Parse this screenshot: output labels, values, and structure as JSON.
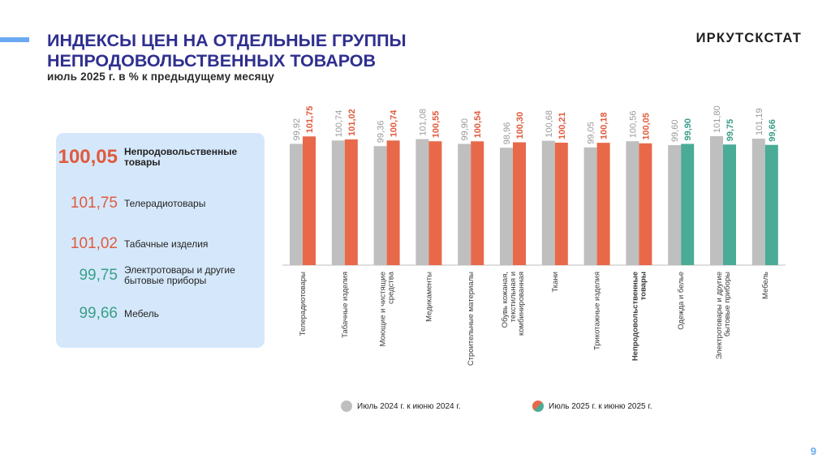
{
  "header": {
    "title_line1": "ИНДЕКСЫ ЦЕН НА ОТДЕЛЬНЫЕ ГРУППЫ",
    "title_line2": "НЕПРОДОВОЛЬСТВЕННЫХ ТОВАРОВ",
    "subtitle": "июль 2025 г. в % к предыдущему месяцу",
    "brand": "ИРКУТСКСТАТ"
  },
  "summary": [
    {
      "value": "100,05",
      "label": "Непродовольственные товары",
      "color": "#e05a3c"
    },
    {
      "value": "101,75",
      "label": "Телерадиотовары",
      "color": "#e05a3c"
    },
    {
      "value": "101,02",
      "label": "Табачные изделия",
      "color": "#e05a3c"
    },
    {
      "value": "99,75",
      "label": "Электротовары и другие бытовые приборы",
      "color": "#3a9e89"
    },
    {
      "value": "99,66",
      "label": "Мебель",
      "color": "#3a9e89"
    }
  ],
  "colors": {
    "prev": "#bfbfbf",
    "up": "#e8694a",
    "down": "#4aab96",
    "prev_label": "#9a9a9a",
    "up_label": "#e05a3c",
    "down_label": "#3a9e89"
  },
  "chart_data": {
    "type": "bar",
    "categories": [
      "Телерадиотовары",
      "Табачные изделия",
      "Моющие и чистящие средства",
      "Медикаменты",
      "Строительные материалы",
      "Обувь кожаная, текстильная и комбинированная",
      "Ткани",
      "Трикотажные изделия",
      "Непродовольственные товары",
      "Одежда и белье",
      "Электротовары и другие бытовые приборы",
      "Мебель"
    ],
    "series": [
      {
        "name": "Июль 2024 г. к  июню 2024 г.",
        "values": [
          99.92,
          100.74,
          99.36,
          101.08,
          99.9,
          98.96,
          100.68,
          99.05,
          100.56,
          99.6,
          101.8,
          101.19
        ],
        "labels": [
          "99,92",
          "100,74",
          "99,36",
          "101,08",
          "99,90",
          "98,96",
          "100,68",
          "99,05",
          "100,56",
          "99,60",
          "101,80",
          "101,19"
        ]
      },
      {
        "name": "Июль  2025 г. к  июню 2025 г.",
        "values": [
          101.75,
          101.02,
          100.74,
          100.55,
          100.54,
          100.3,
          100.21,
          100.18,
          100.05,
          99.9,
          99.75,
          99.66
        ],
        "labels": [
          "101,75",
          "101,02",
          "100,74",
          "100,55",
          "100,54",
          "100,30",
          "100,21",
          "100,18",
          "100,05",
          "99,90",
          "99,75",
          "99,66"
        ]
      }
    ],
    "bold_category": "Непродовольственные товары",
    "legend_position": "bottom",
    "grid": false
  },
  "page_number": "9"
}
